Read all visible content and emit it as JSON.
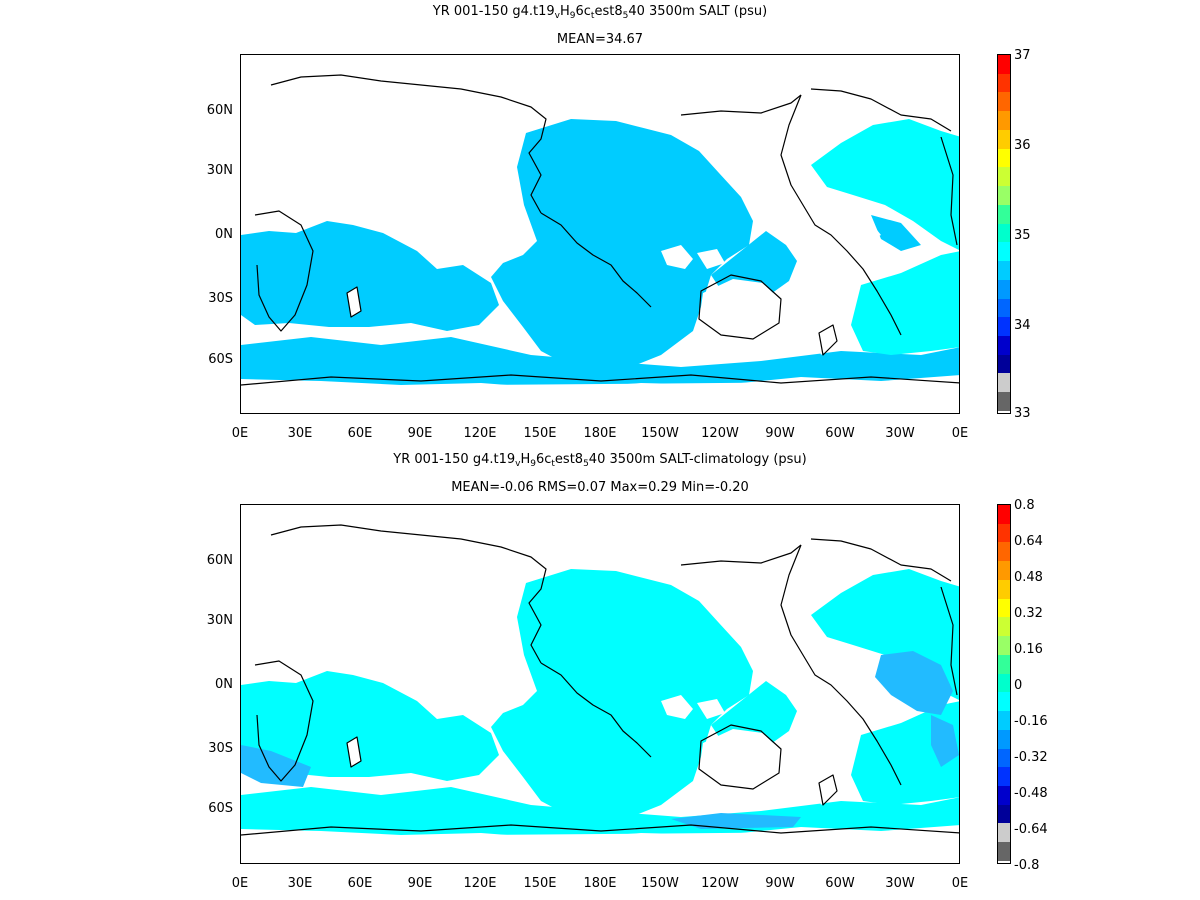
{
  "panels": [
    {
      "title_parts": [
        "YR 001-150 g4.t19",
        "v",
        "H",
        "9",
        "6c",
        "t",
        "est8",
        "5",
        "40 3500m SALT (psu)"
      ],
      "subtitle": "MEAN=34.67",
      "colorbar_labels": [
        "37",
        "36",
        "35",
        "34",
        "33"
      ],
      "colors": {
        "main": "#00ccff",
        "secondary": "#00ffff",
        "tertiary": "#22aaff",
        "scale": [
          "#ff0000",
          "#ff3300",
          "#ff6600",
          "#ff9900",
          "#ffcc00",
          "#ffff00",
          "#ccff33",
          "#99ff66",
          "#33ff99",
          "#00ffcc",
          "#00ffff",
          "#00ccff",
          "#0099ff",
          "#0066ff",
          "#0033ff",
          "#0000cc",
          "#000099",
          "#cccccc",
          "#666666"
        ]
      }
    },
    {
      "title_parts": [
        "YR 001-150 g4.t19",
        "v",
        "H",
        "9",
        "6c",
        "t",
        "est8",
        "5",
        "40 3500m SALT-climatology (psu)"
      ],
      "subtitle": "MEAN=-0.06   RMS=0.07   Max=0.29   Min=-0.20",
      "colorbar_labels": [
        "0.8",
        "0.64",
        "0.48",
        "0.32",
        "0.16",
        "0",
        "-0.16",
        "-0.32",
        "-0.48",
        "-0.64",
        "-0.8"
      ],
      "colors": {
        "main": "#00ffff",
        "secondary": "#00ffff",
        "tertiary": "#22bbff",
        "scale": [
          "#ff0000",
          "#ff3300",
          "#ff6600",
          "#ff9900",
          "#ffcc00",
          "#ffff00",
          "#ccff33",
          "#99ff66",
          "#33ff99",
          "#00ffcc",
          "#00ffff",
          "#00ccff",
          "#0099ff",
          "#0066ff",
          "#0033ff",
          "#0000cc",
          "#000099",
          "#cccccc",
          "#666666"
        ]
      }
    }
  ],
  "axes": {
    "x_labels": [
      "0E",
      "30E",
      "60E",
      "90E",
      "120E",
      "150E",
      "180E",
      "150W",
      "120W",
      "90W",
      "60W",
      "30W",
      "0E"
    ],
    "y_labels": [
      "60N",
      "30N",
      "0N",
      "30S",
      "60S"
    ]
  }
}
